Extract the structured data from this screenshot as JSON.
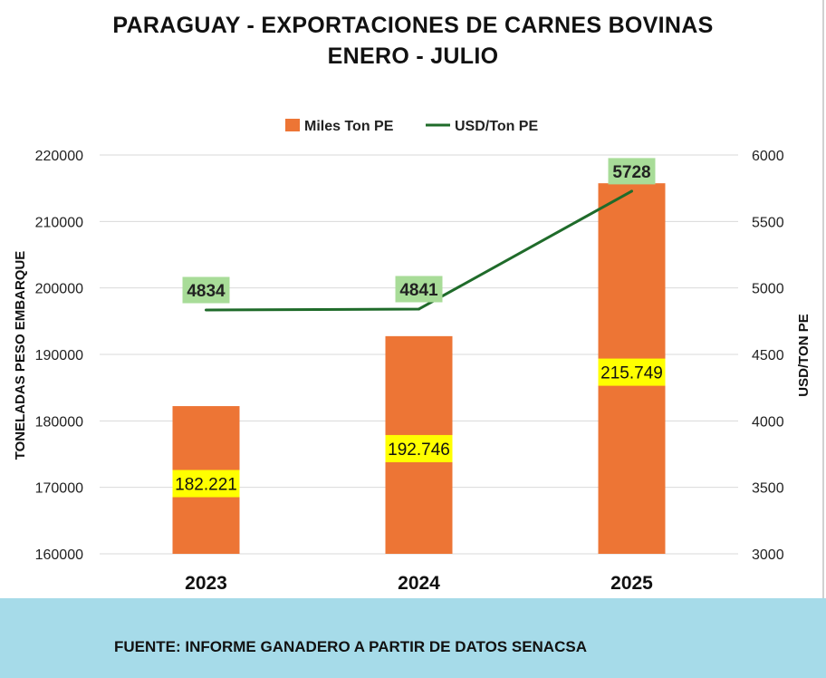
{
  "header": {
    "title_line1": "PARAGUAY - EXPORTACIONES DE CARNES BOVINAS",
    "title_line2": "ENERO - JULIO"
  },
  "footer": {
    "source": "FUENTE: INFORME GANADERO A PARTIR DE DATOS SENACSA"
  },
  "colors": {
    "bar": "#ed7535",
    "line": "#1f6b2a",
    "bar_label_bg": "#ffff00",
    "line_label_bg": "#a8dc98",
    "grid": "#d9d9d9",
    "footer_bg": "#a6dbe9"
  },
  "chart_data": {
    "type": "bar",
    "categories": [
      "2023",
      "2024",
      "2025"
    ],
    "series": [
      {
        "name": "Miles Ton PE",
        "type": "bar",
        "axis": "left",
        "values": [
          182221,
          192746,
          215749
        ],
        "labels": [
          "182.221",
          "192.746",
          "215.749"
        ]
      },
      {
        "name": "USD/Ton PE",
        "type": "line",
        "axis": "right",
        "values": [
          4834,
          4841,
          5728
        ],
        "labels": [
          "4834",
          "4841",
          "5728"
        ]
      }
    ],
    "y_left": {
      "label": "TONELADAS PESO EMBARQUE",
      "ylim": [
        160000,
        220000
      ],
      "ticks": [
        "160000",
        "170000",
        "180000",
        "190000",
        "200000",
        "210000",
        "220000"
      ]
    },
    "y_right": {
      "label": "USD/TON PE",
      "ylim": [
        3000,
        6000
      ],
      "ticks": [
        "3000",
        "3500",
        "4000",
        "4500",
        "5000",
        "5500",
        "6000"
      ]
    },
    "grid": true,
    "legend_position": "top"
  }
}
